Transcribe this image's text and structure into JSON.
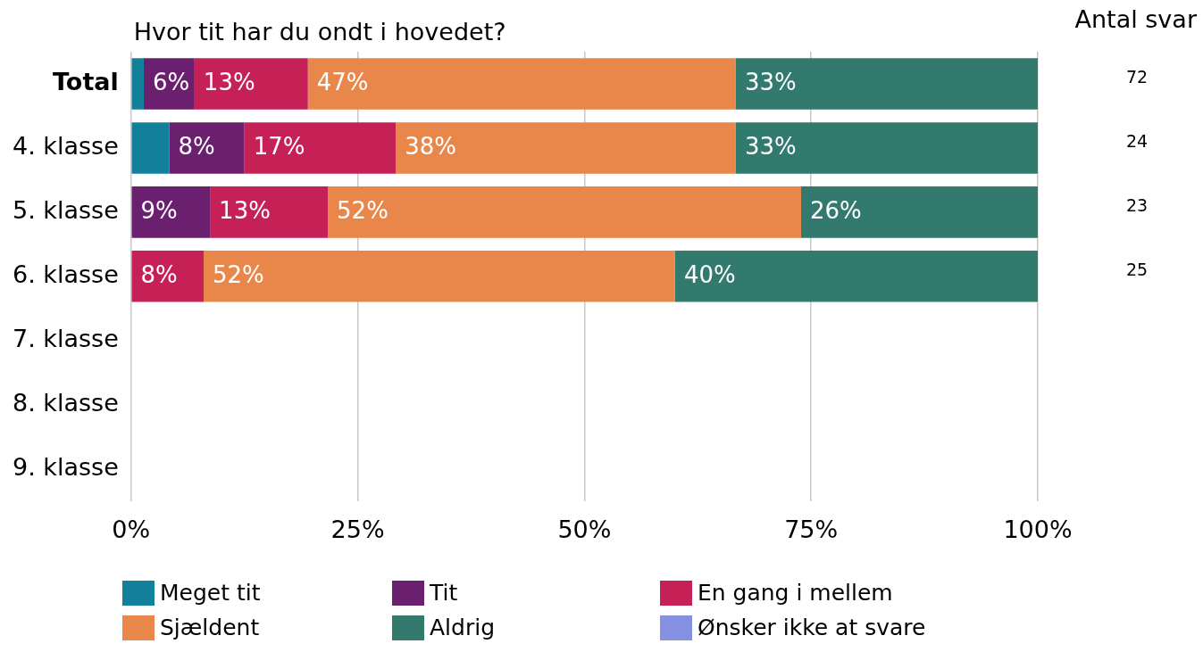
{
  "chart_data": {
    "type": "bar",
    "orientation": "horizontal",
    "stacked": true,
    "title": "Hvor tit har du ondt i hovedet?",
    "categories": [
      "Total",
      "4. klasse",
      "5. klasse",
      "6. klasse",
      "7. klasse",
      "8. klasse",
      "9. klasse"
    ],
    "series": [
      {
        "name": "Meget tit",
        "color": "#13809b",
        "values": [
          1.4,
          4.2,
          null,
          null,
          null,
          null,
          null
        ],
        "value_labels": [
          null,
          null,
          null,
          null,
          null,
          null,
          null
        ]
      },
      {
        "name": "Tit",
        "color": "#6b206f",
        "values": [
          5.6,
          8.3,
          8.7,
          null,
          null,
          null,
          null
        ],
        "value_labels": [
          "6%",
          "8%",
          "9%",
          null,
          null,
          null,
          null
        ]
      },
      {
        "name": "En gang i mellem",
        "color": "#c62156",
        "values": [
          12.5,
          16.7,
          13.0,
          8,
          null,
          null,
          null
        ],
        "value_labels": [
          "13%",
          "17%",
          "13%",
          "8%",
          null,
          null,
          null
        ]
      },
      {
        "name": "Sjældent",
        "color": "#e9864a",
        "values": [
          47.2,
          37.5,
          52.2,
          52,
          null,
          null,
          null
        ],
        "value_labels": [
          "47%",
          "38%",
          "52%",
          "52%",
          null,
          null,
          null
        ]
      },
      {
        "name": "Aldrig",
        "color": "#327a6e",
        "values": [
          33.3,
          33.3,
          26.1,
          40,
          null,
          null,
          null
        ],
        "value_labels": [
          "33%",
          "33%",
          "26%",
          "40%",
          null,
          null,
          null
        ]
      },
      {
        "name": "Ønsker ikke at svare",
        "color": "#8590e0",
        "values": [
          null,
          null,
          null,
          null,
          null,
          null,
          null
        ],
        "value_labels": [
          null,
          null,
          null,
          null,
          null,
          null,
          null
        ]
      }
    ],
    "xlim": [
      0,
      100
    ],
    "xticks": [
      {
        "value": 0,
        "label": "0%"
      },
      {
        "value": 25,
        "label": "25%"
      },
      {
        "value": 50,
        "label": "50%"
      },
      {
        "value": 75,
        "label": "75%"
      },
      {
        "value": 100,
        "label": "100%"
      }
    ],
    "grid": "x",
    "legend": "bottom",
    "annotations": [
      "Antal svar",
      "72",
      "24",
      "23",
      "25"
    ]
  }
}
